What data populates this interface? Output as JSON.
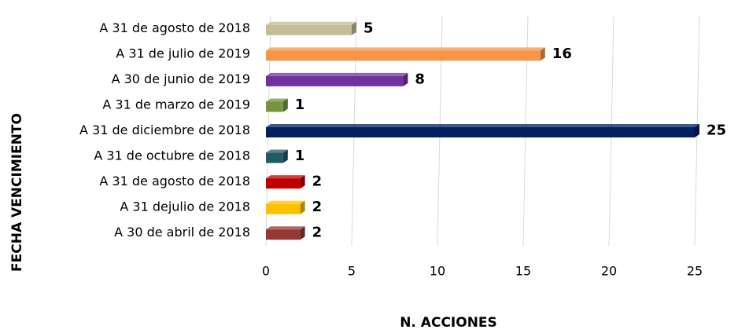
{
  "chart_data": {
    "type": "bar",
    "orientation": "horizontal",
    "x_label": "N. ACCIONES",
    "y_label": "FECHA VENCIMIENTO",
    "categories": [
      "A 31 de agosto de 2018",
      "A 31 de julio de 2019",
      "A 30 de junio de 2019",
      "A 31 de marzo de 2019",
      "A 31 de diciembre de 2018",
      "A 31 de octubre de 2018",
      "A 31 de agosto de 2018",
      "A 31 dejulio de 2018",
      "A 30 de abril de 2018"
    ],
    "values": [
      5,
      16,
      8,
      1,
      25,
      1,
      2,
      2,
      2
    ],
    "colors": [
      "#c4bd97",
      "#f79646",
      "#7030a0",
      "#77933c",
      "#002060",
      "#215967",
      "#c00000",
      "#ffc000",
      "#953735"
    ],
    "xlim": [
      0,
      25
    ],
    "xticks": [
      0,
      5,
      10,
      15,
      20,
      25
    ],
    "grid": true
  }
}
